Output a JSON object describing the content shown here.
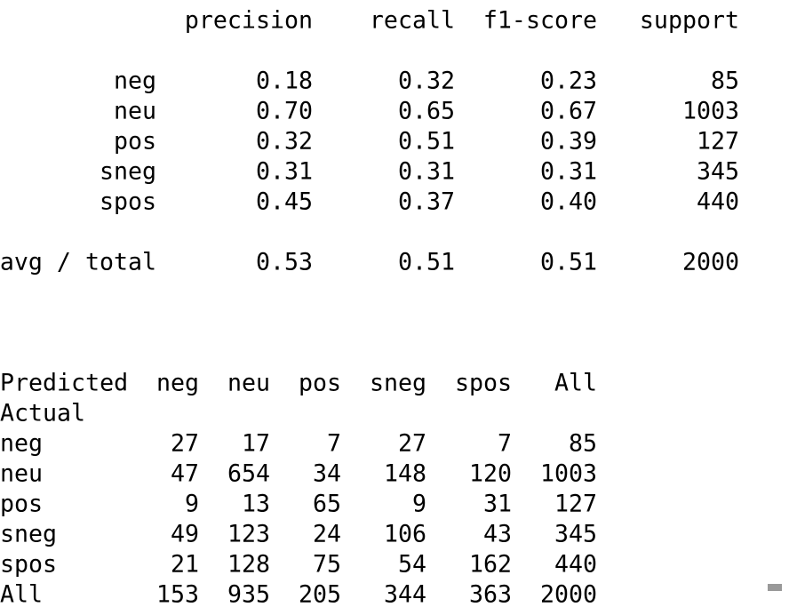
{
  "report": {
    "columns": [
      "precision",
      "recall",
      "f1-score",
      "support"
    ],
    "rows": [
      {
        "label": "neg",
        "values": [
          "0.18",
          "0.32",
          "0.23",
          "85"
        ]
      },
      {
        "label": "neu",
        "values": [
          "0.70",
          "0.65",
          "0.67",
          "1003"
        ]
      },
      {
        "label": "pos",
        "values": [
          "0.32",
          "0.51",
          "0.39",
          "127"
        ]
      },
      {
        "label": "sneg",
        "values": [
          "0.31",
          "0.31",
          "0.31",
          "345"
        ]
      },
      {
        "label": "spos",
        "values": [
          "0.45",
          "0.37",
          "0.40",
          "440"
        ]
      }
    ],
    "avg": {
      "label": "avg / total",
      "values": [
        "0.53",
        "0.51",
        "0.51",
        "2000"
      ]
    }
  },
  "crosstab": {
    "corner": "Predicted",
    "index_name": "Actual",
    "columns": [
      "neg",
      "neu",
      "pos",
      "sneg",
      "spos",
      "All"
    ],
    "rows": [
      {
        "label": "neg",
        "values": [
          "27",
          "17",
          "7",
          "27",
          "7",
          "85"
        ]
      },
      {
        "label": "neu",
        "values": [
          "47",
          "654",
          "34",
          "148",
          "120",
          "1003"
        ]
      },
      {
        "label": "pos",
        "values": [
          "9",
          "13",
          "65",
          "9",
          "31",
          "127"
        ]
      },
      {
        "label": "sneg",
        "values": [
          "49",
          "123",
          "24",
          "106",
          "43",
          "345"
        ]
      },
      {
        "label": "spos",
        "values": [
          "21",
          "128",
          "75",
          "54",
          "162",
          "440"
        ]
      },
      {
        "label": "All",
        "values": [
          "153",
          "935",
          "205",
          "344",
          "363",
          "2000"
        ]
      }
    ]
  }
}
